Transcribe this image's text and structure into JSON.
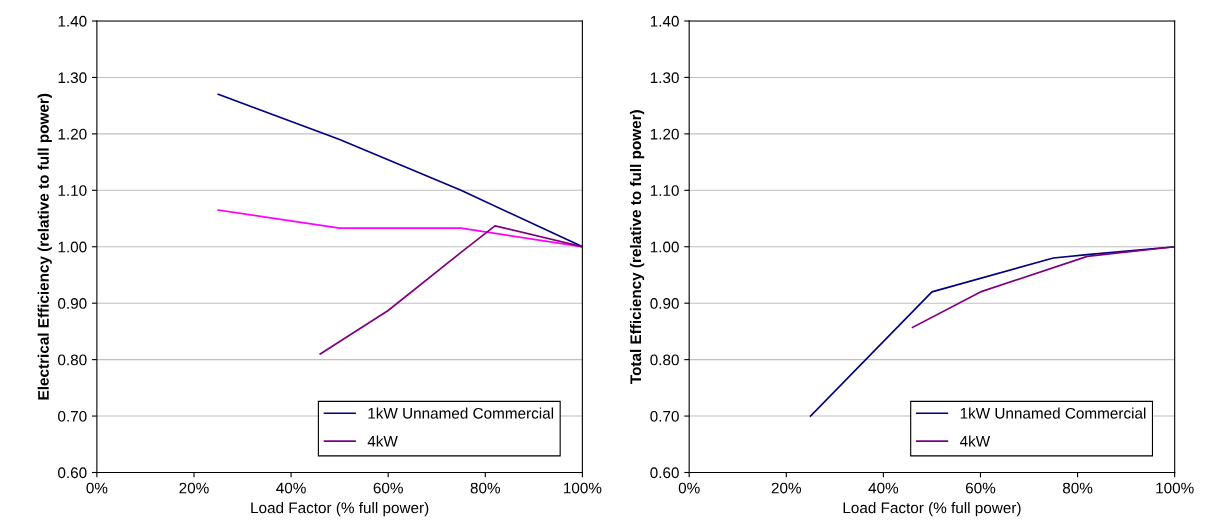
{
  "chart_data": [
    {
      "type": "line",
      "xlabel": "Load Factor (% full power)",
      "ylabel": "Electrical Efficiency (relative to full power)",
      "series": [
        {
          "name": "1kW Unnamed Commercial",
          "color": "#000080",
          "x": [
            25,
            50,
            75,
            100
          ],
          "values": [
            1.27,
            1.19,
            1.1,
            1.0
          ]
        },
        {
          "color": "#ff00ff",
          "x": [
            25,
            50,
            75,
            100
          ],
          "values": [
            1.065,
            1.033,
            1.033,
            1.0
          ]
        },
        {
          "name": "4kW",
          "color": "#800080",
          "x": [
            46,
            60,
            75,
            82,
            100
          ],
          "values": [
            0.81,
            0.887,
            0.99,
            1.037,
            1.0
          ]
        }
      ],
      "xlim": [
        0,
        100
      ],
      "xticks": [
        {
          "value": 0,
          "label": "0%"
        },
        {
          "value": 20,
          "label": "20%"
        },
        {
          "value": 40,
          "label": "40%"
        },
        {
          "value": 60,
          "label": "60%"
        },
        {
          "value": 80,
          "label": "80%"
        },
        {
          "value": 100,
          "label": "100%"
        }
      ],
      "ylim": [
        0.6,
        1.4
      ],
      "yticks": [
        {
          "value": 0.6,
          "label": "0.60"
        },
        {
          "value": 0.7,
          "label": "0.70"
        },
        {
          "value": 0.8,
          "label": "0.80"
        },
        {
          "value": 0.9,
          "label": "0.90"
        },
        {
          "value": 1.0,
          "label": "1.00"
        },
        {
          "value": 1.1,
          "label": "1.10"
        },
        {
          "value": 1.2,
          "label": "1.20"
        },
        {
          "value": 1.3,
          "label": "1.30"
        },
        {
          "value": 1.4,
          "label": "1.40"
        }
      ],
      "grid": "y",
      "legend": "bottom right",
      "marker": "none",
      "line_style": "solid"
    },
    {
      "type": "line",
      "xlabel": "Load Factor (% full power)",
      "ylabel": "Total Efficiency (relative to full power)",
      "series": [
        {
          "name": "1kW Unnamed Commercial",
          "color": "#000080",
          "x": [
            25,
            50,
            75,
            82,
            100
          ],
          "values": [
            0.7,
            0.92,
            0.98,
            0.986,
            1.0
          ]
        },
        {
          "name": "4kW",
          "color": "#800080",
          "x": [
            46,
            60,
            82,
            100
          ],
          "values": [
            0.857,
            0.92,
            0.983,
            1.0
          ]
        }
      ],
      "xlim": [
        0,
        100
      ],
      "xticks": [
        {
          "value": 0,
          "label": "0%"
        },
        {
          "value": 20,
          "label": "20%"
        },
        {
          "value": 40,
          "label": "40%"
        },
        {
          "value": 60,
          "label": "60%"
        },
        {
          "value": 80,
          "label": "80%"
        },
        {
          "value": 100,
          "label": "100%"
        }
      ],
      "ylim": [
        0.6,
        1.4
      ],
      "yticks": [
        {
          "value": 0.6,
          "label": "0.60"
        },
        {
          "value": 0.7,
          "label": "0.70"
        },
        {
          "value": 0.8,
          "label": "0.80"
        },
        {
          "value": 0.9,
          "label": "0.90"
        },
        {
          "value": 1.0,
          "label": "1.00"
        },
        {
          "value": 1.1,
          "label": "1.10"
        },
        {
          "value": 1.2,
          "label": "1.20"
        },
        {
          "value": 1.3,
          "label": "1.30"
        },
        {
          "value": 1.4,
          "label": "1.40"
        }
      ],
      "grid": "y",
      "legend": "bottom right",
      "marker": "none",
      "line_style": "solid"
    }
  ]
}
